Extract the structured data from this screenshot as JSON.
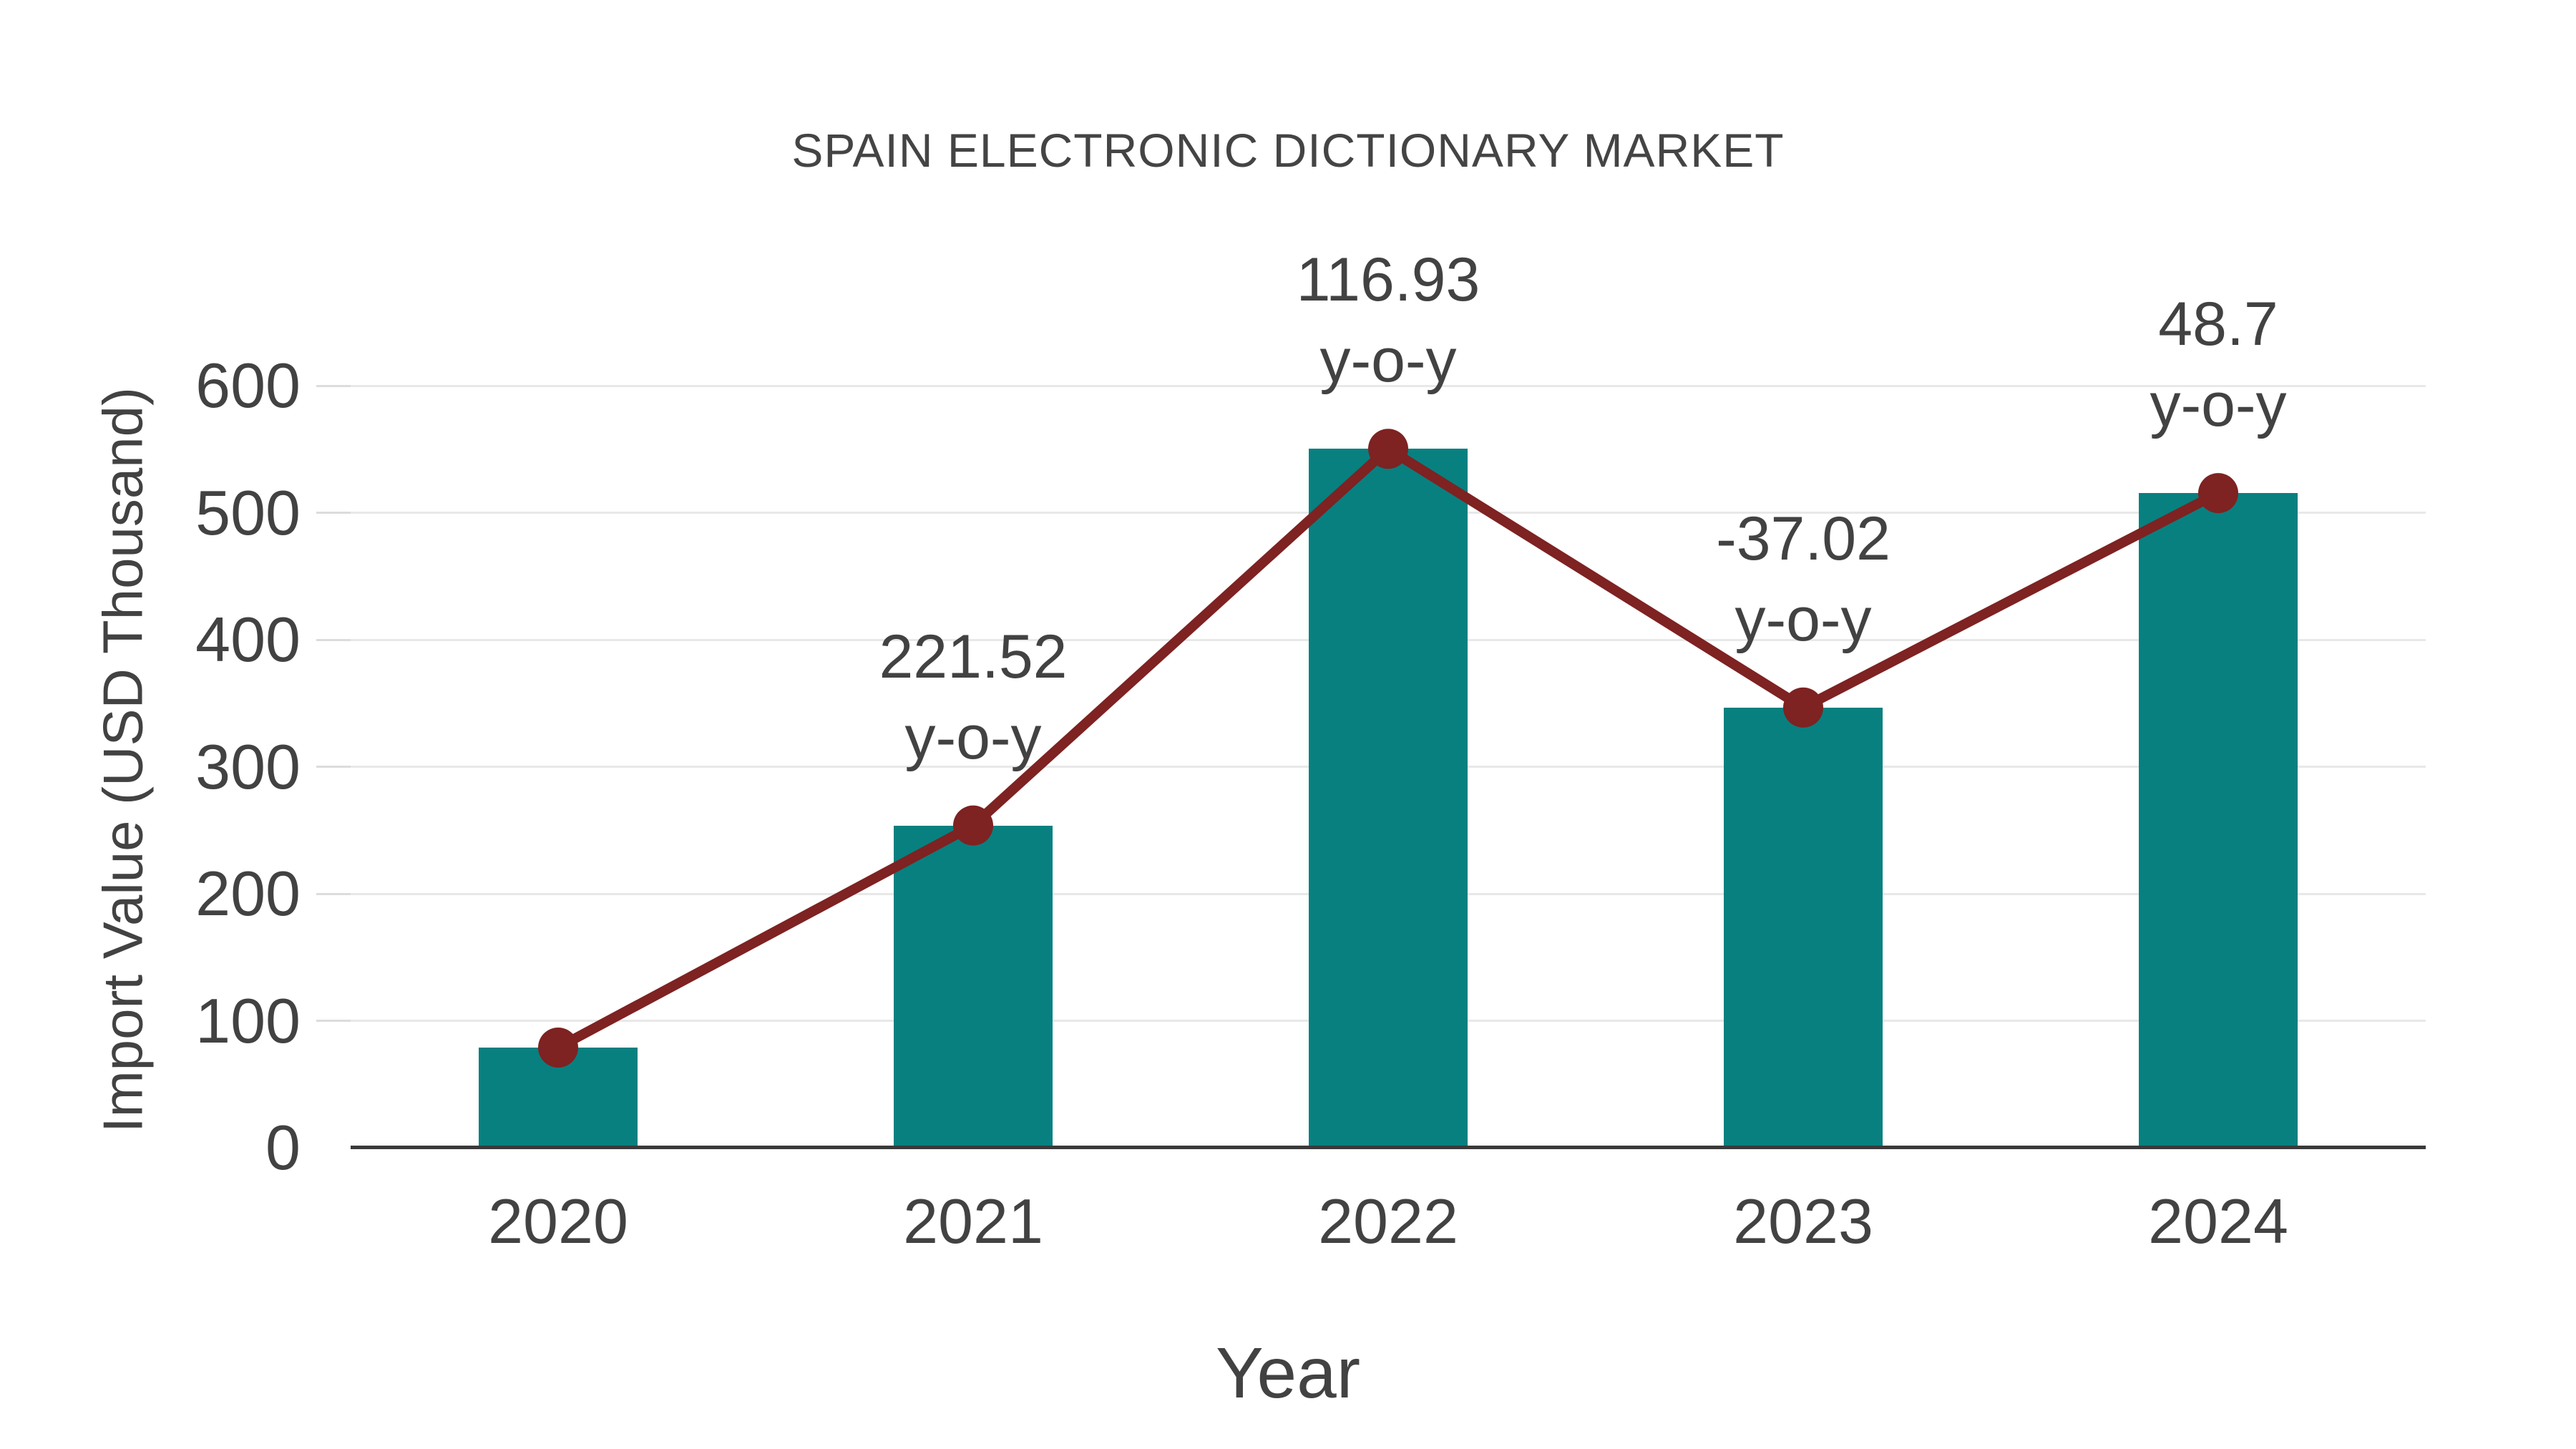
{
  "chart_data": {
    "type": "bar",
    "title": "SPAIN ELECTRONIC DICTIONARY MARKET",
    "xlabel": "Year",
    "ylabel": "Import Value (USD Thousand)",
    "categories": [
      "2020",
      "2021",
      "2022",
      "2023",
      "2024"
    ],
    "series": [
      {
        "name": "import-value-bars",
        "type": "bar",
        "values": [
          78.9,
          253.7,
          550.3,
          346.6,
          515.4
        ]
      },
      {
        "name": "import-value-trend-line",
        "type": "line",
        "values": [
          78.9,
          253.7,
          550.3,
          346.6,
          515.4
        ]
      }
    ],
    "annotations": [
      {
        "category": "2021",
        "value_label": "221.52",
        "suffix": "y-o-y"
      },
      {
        "category": "2022",
        "value_label": "116.93",
        "suffix": "y-o-y"
      },
      {
        "category": "2023",
        "value_label": "-37.02",
        "suffix": "y-o-y"
      },
      {
        "category": "2024",
        "value_label": "48.7",
        "suffix": "y-o-y"
      }
    ],
    "ylim": [
      0,
      600
    ],
    "yticks": [
      0,
      100,
      200,
      300,
      400,
      500,
      600
    ],
    "grid": "horizontal",
    "legend": "none",
    "colors": {
      "bar": "#088080",
      "line": "#7e2222",
      "marker": "#7e2222",
      "text": "#424242",
      "grid": "#e8e8e8",
      "axis": "#3a3a3a"
    }
  }
}
